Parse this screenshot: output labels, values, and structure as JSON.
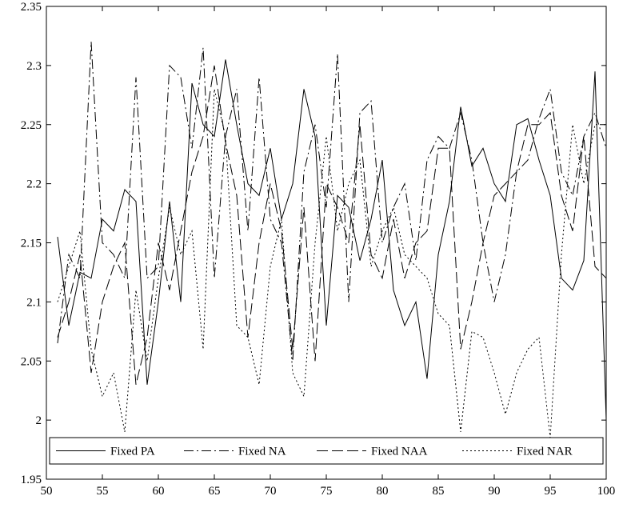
{
  "chart_data": {
    "type": "line",
    "title": "",
    "xlabel": "",
    "ylabel": "",
    "xlim": [
      50,
      100
    ],
    "ylim": [
      1.95,
      2.35
    ],
    "x_ticks": [
      "50",
      "55",
      "60",
      "65",
      "70",
      "75",
      "80",
      "85",
      "90",
      "95",
      "100"
    ],
    "y_ticks": [
      "1.95",
      "2",
      "2.05",
      "2.1",
      "2.15",
      "2.2",
      "2.25",
      "2.3",
      "2.35"
    ],
    "grid": false,
    "legend_position": "bottom",
    "x": [
      51,
      52,
      53,
      54,
      55,
      56,
      57,
      58,
      59,
      60,
      61,
      62,
      63,
      64,
      65,
      66,
      67,
      68,
      69,
      70,
      71,
      72,
      73,
      74,
      75,
      76,
      77,
      78,
      79,
      80,
      81,
      82,
      83,
      84,
      85,
      86,
      87,
      88,
      89,
      90,
      91,
      92,
      93,
      94,
      95,
      96,
      97,
      98,
      99,
      100
    ],
    "series": [
      {
        "name": "Fixed PA",
        "dash": "solid",
        "color": "#000000",
        "values": [
          2.155,
          2.08,
          2.125,
          2.12,
          2.17,
          2.16,
          2.195,
          2.185,
          2.03,
          2.1,
          2.185,
          2.1,
          2.285,
          2.25,
          2.24,
          2.305,
          2.25,
          2.2,
          2.19,
          2.23,
          2.17,
          2.2,
          2.28,
          2.24,
          2.08,
          2.19,
          2.18,
          2.135,
          2.17,
          2.22,
          2.11,
          2.08,
          2.1,
          2.035,
          2.14,
          2.185,
          2.265,
          2.215,
          2.23,
          2.2,
          2.185,
          2.25,
          2.255,
          2.22,
          2.19,
          2.12,
          2.11,
          2.135,
          2.295,
          2.0
        ]
      },
      {
        "name": "Fixed NA",
        "dash": "dashdot",
        "color": "#000000",
        "values": [
          2.065,
          2.14,
          2.12,
          2.32,
          2.15,
          2.14,
          2.12,
          2.29,
          2.12,
          2.13,
          2.3,
          2.29,
          2.23,
          2.315,
          2.12,
          2.24,
          2.28,
          2.16,
          2.29,
          2.17,
          2.15,
          2.05,
          2.21,
          2.25,
          2.18,
          2.31,
          2.1,
          2.26,
          2.27,
          2.15,
          2.18,
          2.2,
          2.135,
          2.22,
          2.24,
          2.23,
          2.26,
          2.22,
          2.15,
          2.1,
          2.14,
          2.21,
          2.22,
          2.255,
          2.28,
          2.21,
          2.19,
          2.24,
          2.26,
          2.23
        ]
      },
      {
        "name": "Fixed NAA",
        "dash": "longdash",
        "color": "#000000",
        "values": [
          2.07,
          2.1,
          2.14,
          2.04,
          2.1,
          2.13,
          2.15,
          2.03,
          2.07,
          2.15,
          2.11,
          2.16,
          2.21,
          2.24,
          2.3,
          2.235,
          2.19,
          2.07,
          2.15,
          2.2,
          2.16,
          2.06,
          2.18,
          2.05,
          2.2,
          2.18,
          2.15,
          2.25,
          2.14,
          2.12,
          2.17,
          2.12,
          2.15,
          2.16,
          2.23,
          2.23,
          2.06,
          2.1,
          2.15,
          2.19,
          2.2,
          2.21,
          2.25,
          2.25,
          2.26,
          2.19,
          2.16,
          2.24,
          2.13,
          2.12
        ]
      },
      {
        "name": "Fixed NAR",
        "dash": "dotted",
        "color": "#000000",
        "values": [
          2.1,
          2.13,
          2.16,
          2.06,
          2.02,
          2.04,
          1.99,
          2.11,
          2.05,
          2.12,
          2.18,
          2.14,
          2.16,
          2.06,
          2.28,
          2.24,
          2.08,
          2.07,
          2.03,
          2.13,
          2.17,
          2.04,
          2.02,
          2.15,
          2.24,
          2.16,
          2.2,
          2.22,
          2.13,
          2.16,
          2.18,
          2.14,
          2.13,
          2.12,
          2.09,
          2.08,
          1.99,
          2.075,
          2.07,
          2.04,
          2.005,
          2.04,
          2.06,
          2.07,
          1.985,
          2.14,
          2.25,
          2.2,
          2.25,
          2.25
        ]
      }
    ]
  }
}
